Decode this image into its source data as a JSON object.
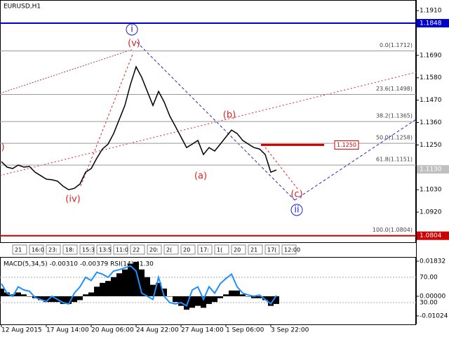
{
  "chart_data": [
    {
      "type": "line",
      "title": "EURUSD,H1",
      "color": "#000000",
      "values": [
        1.1168,
        1.1141,
        1.1134,
        1.1151,
        1.1141,
        1.1144,
        1.1116,
        1.1099,
        1.1082,
        1.1079,
        1.1072,
        1.1047,
        1.103,
        1.1037,
        1.1058,
        1.1116,
        1.1134,
        1.1185,
        1.123,
        1.1254,
        1.1306,
        1.1375,
        1.1444,
        1.1548,
        1.1634,
        1.1582,
        1.1513,
        1.1444,
        1.1513,
        1.1461,
        1.1392,
        1.1341,
        1.1289,
        1.1237,
        1.1254,
        1.1272,
        1.1203,
        1.1237,
        1.122,
        1.1254,
        1.1289,
        1.1323,
        1.1306,
        1.1272,
        1.1254,
        1.1237,
        1.123,
        1.1203,
        1.1116,
        1.1127
      ],
      "xlim": [
        0,
        73.875
      ],
      "xticks": [
        {
          "value": 0,
          "label": "12 Aug 2015"
        },
        {
          "value": 8,
          "label": "17 Aug 14:00"
        },
        {
          "value": 16,
          "label": "20 Aug 06:00"
        },
        {
          "value": 24,
          "label": "24 Aug 22:00"
        },
        {
          "value": 32,
          "label": "27 Aug 14:00"
        },
        {
          "value": 40,
          "label": "1 Sep 06:00"
        },
        {
          "value": 48,
          "label": "3 Sep 22:00"
        }
      ],
      "ylim": [
        1.0772,
        1.1962
      ],
      "yticks": [
        {
          "value": 1.191,
          "label": "1.1910"
        },
        {
          "value": 1.169,
          "label": "1.1690"
        },
        {
          "value": 1.158,
          "label": "1.1580"
        },
        {
          "value": 1.147,
          "label": "1.1470"
        },
        {
          "value": 1.136,
          "label": "1.1360"
        },
        {
          "value": 1.125,
          "label": "1.1250"
        },
        {
          "value": 1.103,
          "label": "1.1030"
        },
        {
          "value": 1.092,
          "label": "1.0920"
        }
      ],
      "levels": [
        {
          "value": 1.1848,
          "label": "1.1848",
          "color": "#0000cc",
          "line": true
        },
        {
          "value": 1.0804,
          "label": "1.0804",
          "color": "#cc0000",
          "line": true
        },
        {
          "value": 1.113,
          "label": "1.1130",
          "color": "#c0c0c0",
          "line": false
        }
      ],
      "target": {
        "value": 1.125,
        "label": "1.1250",
        "color": "#cc0000"
      },
      "fibonacci": [
        {
          "value": 1.1712,
          "label": "0.0(1.1712)"
        },
        {
          "value": 1.1498,
          "label": "23.6(1.1498)"
        },
        {
          "value": 1.1365,
          "label": "38.2(1.1365)"
        },
        {
          "value": 1.1258,
          "label": "50.0(1.1258)"
        },
        {
          "value": 1.1151,
          "label": "61.8(1.1151)"
        },
        {
          "value": 1.0804,
          "label": "100.0(1.0804)"
        }
      ],
      "wave_labels": [
        "i",
        "(v)",
        "(iv)",
        "(a)",
        "(b)",
        "(c)",
        "ii",
        ")"
      ],
      "period_labels": [
        "21",
        "16:0",
        "23:",
        "18:",
        "15:3",
        "13:5",
        "11:0",
        "22",
        "20:",
        "2(",
        "20",
        "17:",
        "1(",
        "20",
        "21",
        "17(",
        "12:00"
      ]
    },
    {
      "type": "bar",
      "title": "MACD(5,34,5) -0.00310 -0.00379 RSI(14) 41.30",
      "color": "#000000",
      "values": [
        0.004,
        0.002,
        0.001,
        0.002,
        0.001,
        0.0,
        -0.001,
        -0.002,
        -0.003,
        -0.003,
        -0.003,
        -0.004,
        -0.004,
        -0.003,
        -0.002,
        0.001,
        0.002,
        0.005,
        0.007,
        0.008,
        0.01,
        0.012,
        0.014,
        0.017,
        0.018,
        0.014,
        0.01,
        0.006,
        0.007,
        0.004,
        0.0,
        -0.003,
        -0.005,
        -0.007,
        -0.006,
        -0.005,
        -0.006,
        -0.004,
        -0.003,
        -0.001,
        0.001,
        0.003,
        0.003,
        0.001,
        0.0,
        -0.001,
        -0.001,
        -0.002,
        -0.005,
        -0.004
      ],
      "ylim": [
        -0.01466,
        0.02052
      ],
      "yticks": [
        0.01832,
        {
          "value": 0,
          "label": "0.00000"
        },
        -0.01024
      ],
      "series": [
        {
          "values": [
            60,
            45,
            40,
            55,
            50,
            48,
            38,
            35,
            32,
            40,
            35,
            30,
            28,
            45,
            55,
            70,
            65,
            78,
            75,
            70,
            80,
            82,
            85,
            88,
            80,
            45,
            40,
            35,
            70,
            40,
            30,
            28,
            30,
            25,
            50,
            55,
            35,
            55,
            45,
            60,
            68,
            75,
            55,
            45,
            42,
            40,
            42,
            35,
            28,
            41.3
          ],
          "color": "#1e90ff",
          "axis": "y2"
        }
      ],
      "y2lim": [
        -4.4,
        102.2
      ],
      "y2ticks": [
        {
          "value": 70,
          "label": "70.00"
        },
        {
          "value": 30,
          "label": "30.00"
        }
      ]
    }
  ]
}
